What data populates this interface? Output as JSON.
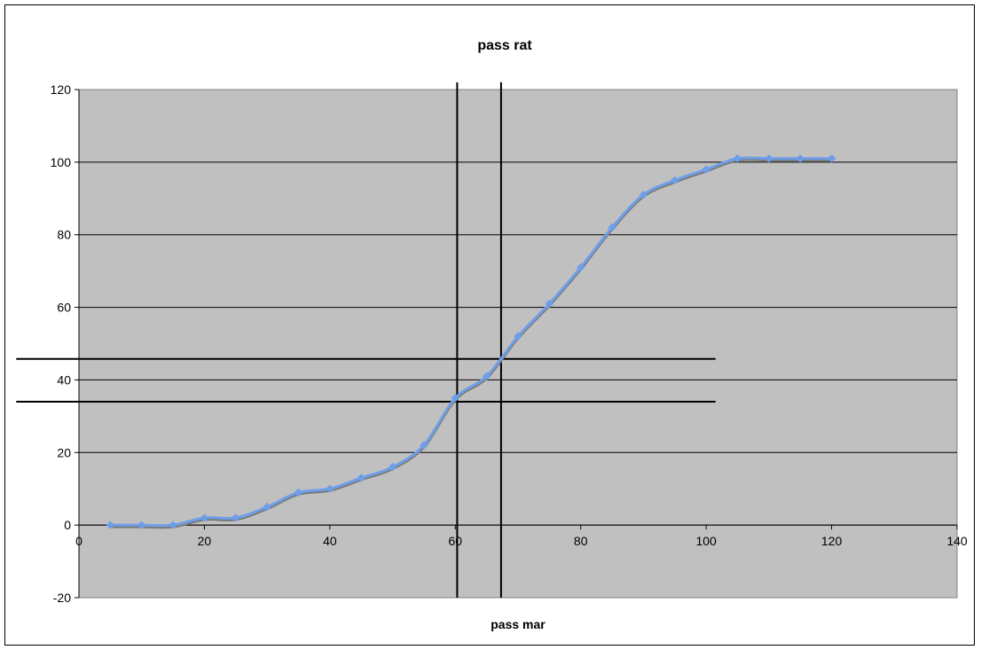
{
  "chart_data": {
    "type": "line",
    "title": "pass rat",
    "xlabel": "pass mar",
    "ylabel": "",
    "xlim": [
      0,
      140
    ],
    "ylim": [
      -20,
      120
    ],
    "xticks": [
      0,
      20,
      40,
      60,
      80,
      100,
      120,
      140
    ],
    "yticks": [
      -20,
      0,
      20,
      40,
      60,
      80,
      100,
      120
    ],
    "grid": "horizontal",
    "legend": "none",
    "plot_background": "#c0c0c0",
    "series": [
      {
        "color": "#6f9ee8",
        "shadow_color": "#7a7a7a",
        "marker": "diamond",
        "x": [
          5,
          10,
          15,
          20,
          25,
          30,
          35,
          40,
          45,
          50,
          55,
          60,
          65,
          70,
          75,
          80,
          85,
          90,
          95,
          100,
          105,
          110,
          115,
          120
        ],
        "y": [
          0,
          0,
          0,
          2,
          2,
          5,
          9,
          10,
          13,
          16,
          22,
          35,
          41,
          52,
          61,
          71,
          82,
          91,
          95,
          98,
          101,
          101,
          101,
          101
        ]
      }
    ],
    "reference_lines": [
      {
        "orientation": "vertical",
        "x": 60.3,
        "y_range": [
          -20,
          122
        ]
      },
      {
        "orientation": "vertical",
        "x": 67.3,
        "y_range": [
          -20,
          122
        ]
      },
      {
        "orientation": "horizontal",
        "y": 45.8,
        "x_range": [
          -10,
          101.5
        ]
      },
      {
        "orientation": "horizontal",
        "y": 34.0,
        "x_range": [
          -10,
          101.5
        ]
      }
    ]
  }
}
